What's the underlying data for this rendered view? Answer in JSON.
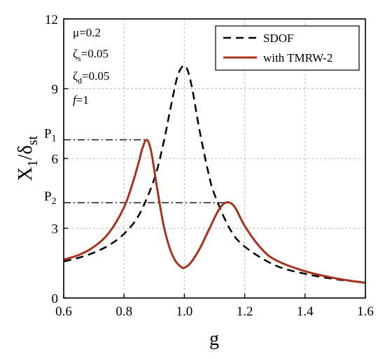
{
  "chart_data": {
    "type": "line",
    "xlabel": "g",
    "ylabel": {
      "main": "X",
      "sub1": "1",
      "slash": "/δ",
      "sub2": "st"
    },
    "xlim": [
      0.6,
      1.6
    ],
    "ylim": [
      0,
      12
    ],
    "xticks": [
      0.6,
      0.8,
      1.0,
      1.2,
      1.4,
      1.6
    ],
    "xtick_labels": [
      "0.6",
      "0.8",
      "1.0",
      "1.2",
      "1.4",
      "1.6"
    ],
    "yticks": [
      0,
      3,
      6,
      9,
      12
    ],
    "ytick_labels": [
      "0",
      "3",
      "6",
      "9",
      "12"
    ],
    "grid": true,
    "legend_position": "top-right",
    "parameters": {
      "mu": {
        "label": "μ=0.2"
      },
      "zeta_s": {
        "sym": "ζ",
        "sub": "s",
        "val": "=0.05"
      },
      "zeta_d": {
        "sym": "ζ",
        "sub": "d",
        "val": "=0.05"
      },
      "f": {
        "sym": "f",
        "val": "=1"
      }
    },
    "annotations": [
      {
        "main": "P",
        "sub": "1",
        "y": 6.8,
        "x_end": 0.875
      },
      {
        "main": "P",
        "sub": "2",
        "y": 4.1,
        "x_end": 1.15
      }
    ],
    "series": [
      {
        "name": "SDOF",
        "style": "dashed",
        "color": "#000000",
        "x": [
          0.6,
          0.65,
          0.7,
          0.75,
          0.8,
          0.85,
          0.9,
          0.93,
          0.95,
          0.97,
          0.98,
          0.99,
          1.0,
          1.01,
          1.02,
          1.03,
          1.05,
          1.08,
          1.1,
          1.15,
          1.2,
          1.3,
          1.4,
          1.5,
          1.6
        ],
        "y": [
          1.57,
          1.73,
          1.95,
          2.27,
          2.76,
          3.58,
          5.11,
          6.62,
          7.9,
          9.16,
          9.64,
          9.9,
          10.0,
          9.82,
          9.36,
          8.72,
          7.23,
          5.36,
          4.45,
          2.99,
          2.21,
          1.41,
          1.04,
          0.81,
          0.66
        ]
      },
      {
        "name": "with TMRW-2",
        "style": "solid",
        "color": "#a8321e",
        "x": [
          0.6,
          0.65,
          0.7,
          0.75,
          0.8,
          0.83,
          0.85,
          0.86,
          0.875,
          0.89,
          0.91,
          0.93,
          0.95,
          0.97,
          0.99,
          1.0,
          1.02,
          1.05,
          1.08,
          1.11,
          1.13,
          1.15,
          1.17,
          1.2,
          1.25,
          1.3,
          1.4,
          1.5,
          1.6
        ],
        "y": [
          1.65,
          1.85,
          2.2,
          2.8,
          3.9,
          5.0,
          5.9,
          6.4,
          6.8,
          6.3,
          4.7,
          3.2,
          2.2,
          1.6,
          1.33,
          1.3,
          1.5,
          2.1,
          2.9,
          3.7,
          4.05,
          4.1,
          3.85,
          3.1,
          2.2,
          1.65,
          1.15,
          0.85,
          0.65
        ]
      }
    ]
  }
}
